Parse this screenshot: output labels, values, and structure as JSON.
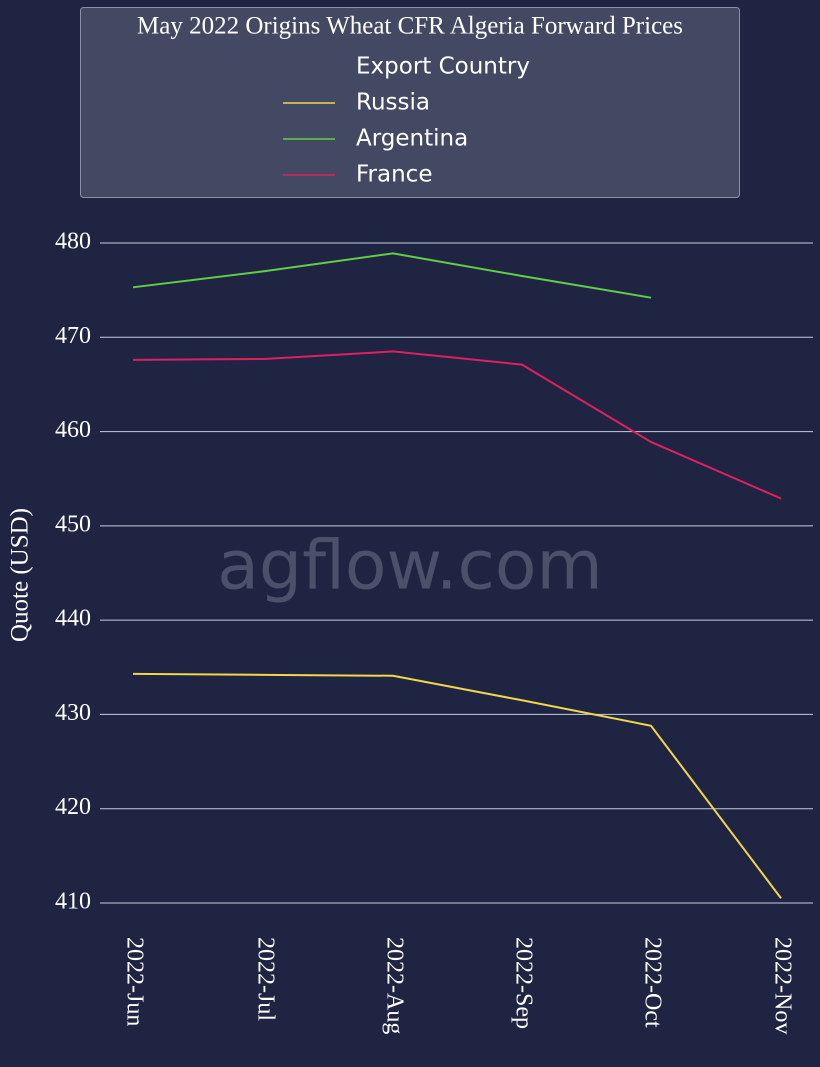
{
  "chart_data": {
    "type": "line",
    "title": "May 2022 Origins Wheat CFR Algeria Forward Prices",
    "legend_title": "Export Country",
    "y_label": "Quote (USD)",
    "watermark": "agflow.com",
    "categories": [
      "2022-Jun",
      "2022-Jul",
      "2022-Aug",
      "2022-Sep",
      "2022-Oct",
      "2022-Nov"
    ],
    "series": [
      {
        "name": "Russia",
        "color": "#f2d64b",
        "values": [
          434.3,
          434.2,
          434.1,
          431.5,
          428.8,
          410.5
        ]
      },
      {
        "name": "Argentina",
        "color": "#5fcf45",
        "values": [
          475.3,
          477.0,
          478.9,
          476.5,
          474.2,
          null
        ]
      },
      {
        "name": "France",
        "color": "#e0205e",
        "values": [
          467.6,
          467.7,
          468.5,
          467.1,
          458.9,
          452.9
        ]
      }
    ],
    "ylim": [
      410,
      480
    ],
    "yticks": [
      410,
      420,
      430,
      440,
      450,
      460,
      470,
      480
    ],
    "grid": true
  }
}
